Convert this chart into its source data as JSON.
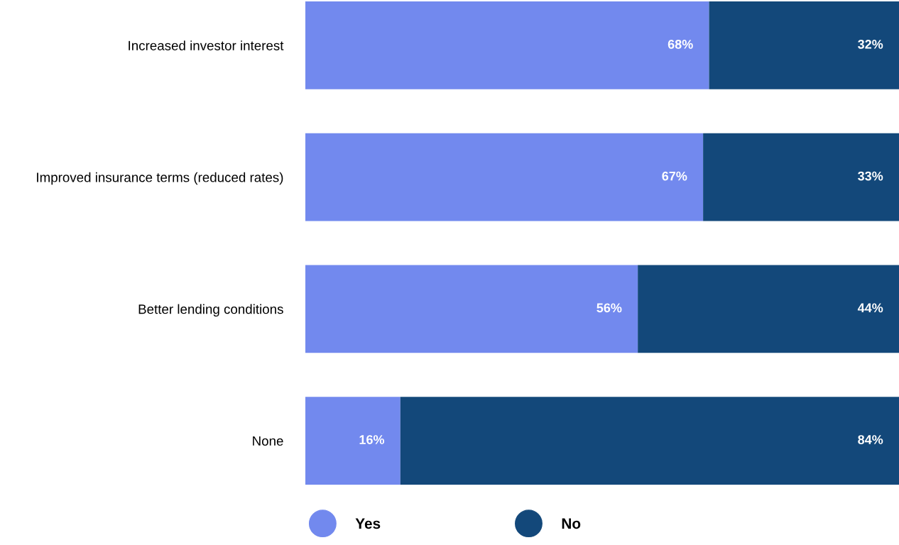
{
  "chart_data": {
    "type": "bar",
    "orientation": "horizontal",
    "stacked": true,
    "legend": "bottom",
    "grid": false,
    "tick_labels": "y",
    "categories": [
      "Increased investor interest",
      "Improved insurance terms (reduced rates)",
      "Better lending conditions",
      "None"
    ],
    "series": [
      {
        "name": "Yes",
        "color": "#7289ee",
        "values": [
          68,
          67,
          56,
          16
        ],
        "value_labels": [
          "68%",
          "67%",
          "56%",
          "16%"
        ]
      },
      {
        "name": "No",
        "color": "#13487a",
        "values": [
          32,
          33,
          44,
          84
        ],
        "value_labels": [
          "32%",
          "33%",
          "44%",
          "84%"
        ]
      }
    ]
  }
}
